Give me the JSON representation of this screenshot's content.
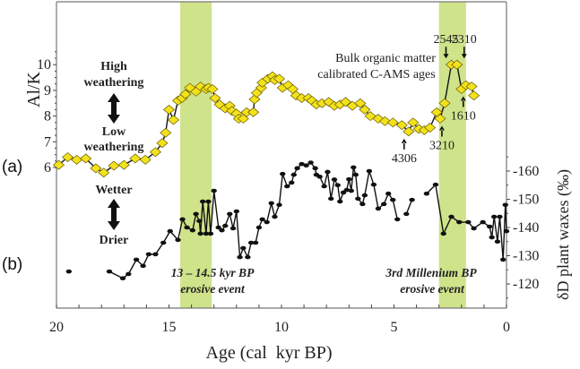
{
  "chart_data": [
    {
      "panel": "(a)",
      "type": "line",
      "ylabel": "Al/K",
      "xlabel": "Age (cal  kyr BP)",
      "xlim": [
        20,
        0
      ],
      "ylim": [
        5.5,
        11.5
      ],
      "yticks": [
        6,
        7,
        8,
        9,
        10
      ],
      "xticks": [
        20,
        15,
        10,
        5,
        0
      ],
      "marker": "diamond",
      "colors": {
        "marker_fill": "#f2e21c",
        "marker_edge": "#6b5a00",
        "line": "#111111"
      },
      "series": [
        {
          "x": [
            19.9,
            19.5,
            19.1,
            18.7,
            18.25,
            17.9,
            17.45,
            17.0,
            16.5,
            16.05,
            15.6,
            15.3,
            15.15,
            15.0,
            14.8,
            14.6,
            14.42,
            14.27,
            14.07,
            13.8,
            13.6,
            13.35,
            13.25,
            13.07,
            12.95,
            12.75,
            12.5,
            12.3,
            12.2,
            12.0,
            11.9,
            11.7,
            11.55,
            11.25,
            11.2,
            11.1,
            10.9,
            10.85,
            10.6,
            10.4,
            10.3,
            10.1,
            9.95,
            9.7,
            9.5,
            9.35,
            9.1,
            8.8,
            8.65,
            8.45,
            8.2,
            7.9,
            7.65,
            7.4,
            7.15,
            6.85,
            6.5,
            6.3,
            6.05,
            5.7,
            5.4,
            5.05,
            4.65,
            4.35,
            4.15,
            3.9,
            3.65,
            3.4,
            3.1,
            2.95,
            2.75,
            2.45,
            2.2,
            2.0,
            1.8,
            1.55,
            1.45
          ],
          "y": [
            6.1,
            6.4,
            6.3,
            6.35,
            5.97,
            5.8,
            6.07,
            6.1,
            6.35,
            6.3,
            6.6,
            6.95,
            7.35,
            8.25,
            7.85,
            8.6,
            8.7,
            8.85,
            9.1,
            8.95,
            9.15,
            9.05,
            9.1,
            9.05,
            8.7,
            8.45,
            8.3,
            8.4,
            8.2,
            8.1,
            7.9,
            7.9,
            8.15,
            8.15,
            8.65,
            8.9,
            9.1,
            9.3,
            9.45,
            9.55,
            9.4,
            9.45,
            9.1,
            9.2,
            9.05,
            8.8,
            8.7,
            8.7,
            8.6,
            8.45,
            8.5,
            8.55,
            8.4,
            8.45,
            8.55,
            8.4,
            8.5,
            8.25,
            8.0,
            7.9,
            7.8,
            7.75,
            7.65,
            7.4,
            7.75,
            7.5,
            7.45,
            7.55,
            8.15,
            7.9,
            8.5,
            10.0,
            10.0,
            9.05,
            9.2,
            9.15,
            8.8
          ]
        }
      ],
      "annotations": [
        {
          "text": "4306",
          "x": 4.35,
          "y": 7.4,
          "arrow": "up"
        },
        {
          "text": "3210",
          "x": 2.95,
          "y": 7.9,
          "arrow": "up"
        },
        {
          "text": "2545",
          "x": 2.45,
          "y": 10.0,
          "arrow": "down"
        },
        {
          "text": "2310",
          "x": 2.2,
          "y": 10.0,
          "arrow": "down"
        },
        {
          "text": "1610",
          "x": 2.0,
          "y": 9.05,
          "arrow": "up"
        }
      ],
      "annotation_title": [
        "Bulk organic matter",
        "calibrated C-AMS ages"
      ],
      "direction_labels": {
        "top": [
          "High",
          "weathering"
        ],
        "bottom": [
          "Low",
          "weathering"
        ]
      }
    },
    {
      "panel": "(b)",
      "type": "line",
      "ylabel": "δD plant waxes (‰)",
      "xlim": [
        20,
        0
      ],
      "ylim": [
        -113,
        -178
      ],
      "yticks": [
        -160,
        -150,
        -140,
        -130,
        -120
      ],
      "marker": "circle",
      "colors": {
        "marker_fill": "#111111",
        "line": "#111111"
      },
      "series": [
        {
          "x": [
            19.45,
            null,
            17.65,
            17.05,
            16.8,
            16.45,
            16.15,
            15.9,
            15.6,
            15.25,
            14.95,
            14.6,
            14.4,
            14.2,
            13.95,
            13.8,
            13.65,
            13.6,
            13.5,
            13.35,
            13.25,
            13.15,
            13.0,
            12.8,
            12.65,
            12.5,
            12.3,
            12.15,
            12.0,
            11.85,
            11.7,
            11.5,
            11.35,
            11.15,
            11.0,
            10.85,
            10.65,
            10.45,
            10.3,
            10.1,
            9.95,
            9.75,
            9.55,
            9.45,
            9.3,
            9.1,
            8.9,
            8.7,
            8.5,
            8.45,
            8.3,
            8.1,
            7.95,
            7.8,
            7.65,
            7.5,
            7.4,
            7.25,
            7.1,
            7.0,
            6.9,
            6.8,
            6.7,
            6.6,
            6.4,
            6.3,
            6.1,
            5.9,
            5.7,
            5.45,
            5.25,
            5.05,
            4.85,
            null,
            4.45,
            4.2,
            null,
            3.55,
            3.15,
            2.8,
            2.45,
            2.1,
            1.7,
            1.45,
            1.05,
            0.75,
            0.65,
            0.55,
            0.4,
            0.3,
            0.15,
            0.05,
            0.0
          ],
          "y": [
            -124.4,
            null,
            -124.4,
            -122,
            -123.5,
            -128.6,
            -126.4,
            -130.5,
            -130.5,
            -134.6,
            -138.7,
            -135.6,
            -142.9,
            -140,
            -139,
            -144.8,
            -142.3,
            -137.8,
            -149.2,
            -137.8,
            -149.2,
            -137.8,
            -153,
            -140,
            -139,
            -140.6,
            -144.8,
            -139.7,
            -145.7,
            -129.5,
            -132.7,
            -129.5,
            -134.6,
            -134.6,
            -140,
            -142.9,
            -141.9,
            -148.6,
            -143.8,
            -148,
            -159,
            -154.6,
            -155.9,
            -158.7,
            -161,
            -162.5,
            -162,
            -163,
            -161,
            -158.7,
            -158,
            -154.6,
            -159.7,
            -150.2,
            -157,
            -155,
            -149.2,
            -152.4,
            -153.3,
            -157.1,
            -153,
            -161.3,
            -158.7,
            -150.2,
            -148.3,
            -151.4,
            -160,
            -155.2,
            -146.7,
            -148.3,
            -152,
            -149.8,
            -142.9,
            null,
            -144.8,
            -149.8,
            null,
            -152,
            -155.2,
            -137.8,
            -143.8,
            -141.9,
            -141.9,
            -139.7,
            -141.9,
            -140.3,
            -136.5,
            -143.8,
            -135,
            -143.8,
            -128.6,
            -148,
            -138.7
          ]
        }
      ],
      "direction_labels": {
        "top": [
          "Wetter"
        ],
        "bottom": [
          "Drier"
        ]
      }
    }
  ],
  "bands": [
    {
      "from": 14.5,
      "to": 13.1,
      "label": [
        "13 – 14.5 kyr BP",
        "erosive event"
      ],
      "color": "#cfe38a"
    },
    {
      "from": 3.0,
      "to": 1.8,
      "label": [
        "3rd Millenium BP",
        "erosive event"
      ],
      "color": "#cfe38a"
    }
  ]
}
